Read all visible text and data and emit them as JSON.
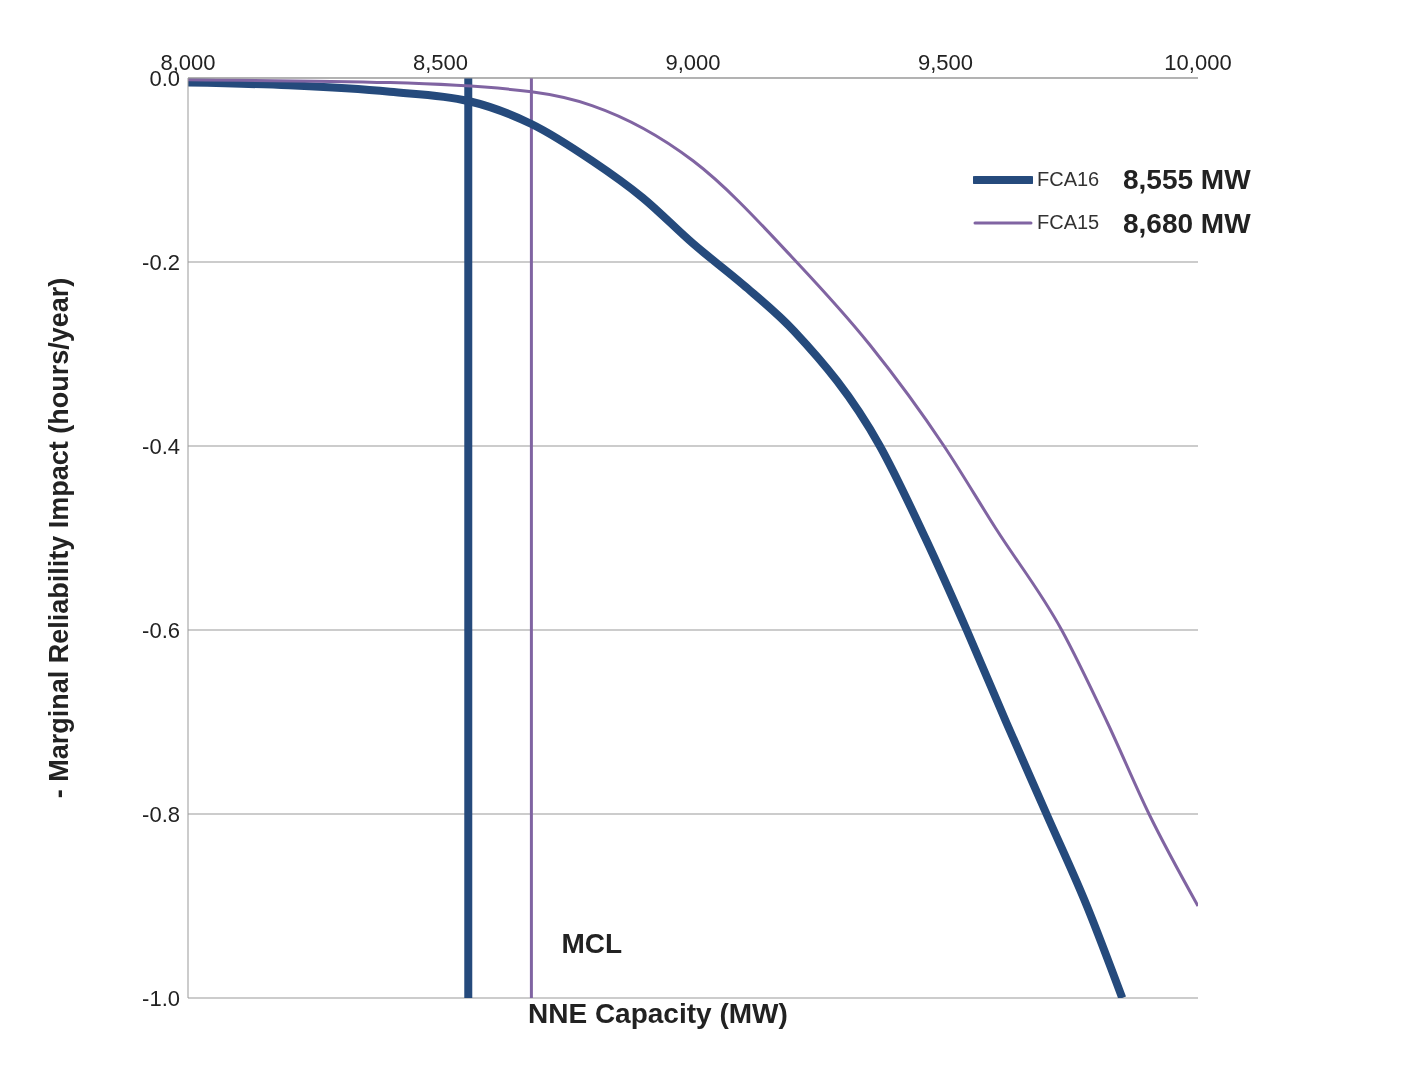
{
  "chart_data": {
    "type": "line",
    "xlabel": "NNE Capacity (MW)",
    "ylabel": "- Marginal Reliability Impact (hours/year)",
    "xlim": [
      8000,
      10000
    ],
    "xticks": [
      {
        "value": 8000,
        "label": "8,000"
      },
      {
        "value": 8500,
        "label": "8,500"
      },
      {
        "value": 9000,
        "label": "9,000"
      },
      {
        "value": 9500,
        "label": "9,500"
      },
      {
        "value": 10000,
        "label": "10,000"
      }
    ],
    "ylim": [
      -1.0,
      0.0
    ],
    "yticks": [
      {
        "value": -1.0,
        "label": "-1.0"
      },
      {
        "value": -0.8,
        "label": "-0.8"
      },
      {
        "value": -0.6,
        "label": "-0.6"
      },
      {
        "value": -0.4,
        "label": "-0.4"
      },
      {
        "value": -0.2,
        "label": "-0.2"
      },
      {
        "value": 0.0,
        "label": "0.0"
      }
    ],
    "grid": "y",
    "legend": "top right",
    "marker": "none",
    "line_style": "solid",
    "series": [
      {
        "name": "FCA16",
        "color": "#254a7c",
        "x": [
          8000,
          8200,
          8400,
          8555,
          8680,
          8800,
          8900,
          9000,
          9100,
          9200,
          9370,
          9460,
          9542,
          9620,
          9700,
          9780,
          9850
        ],
        "values": [
          -0.005,
          -0.008,
          -0.015,
          -0.025,
          -0.05,
          -0.09,
          -0.13,
          -0.18,
          -0.225,
          -0.275,
          -0.4,
          -0.5,
          -0.6,
          -0.7,
          -0.8,
          -0.9,
          -1.0
        ]
      },
      {
        "name": "FCA15",
        "color": "#8064a2",
        "x": [
          8000,
          8400,
          8680,
          8800,
          9000,
          9205,
          9350,
          9497,
          9600,
          9730,
          9820,
          9903,
          10000
        ],
        "values": [
          -0.002,
          -0.005,
          -0.015,
          -0.03,
          -0.09,
          -0.2,
          -0.29,
          -0.4,
          -0.49,
          -0.6,
          -0.7,
          -0.8,
          -0.9
        ]
      }
    ],
    "ref_lines": [
      {
        "axis": "x",
        "value": 8555,
        "color": "#254a7c"
      },
      {
        "axis": "x",
        "value": 8680,
        "color": "#8064a2"
      }
    ],
    "annotations": [
      "8,555 MW",
      "8,680 MW",
      {
        "text": "MCL",
        "x": 8680,
        "y": -0.94
      }
    ]
  }
}
